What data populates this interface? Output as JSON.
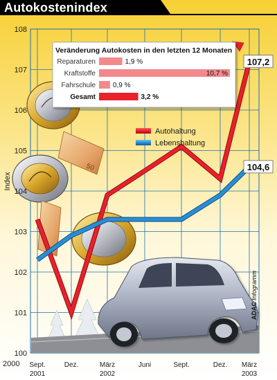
{
  "header": {
    "title": "Autokostenindex"
  },
  "chart_data": {
    "type": "line",
    "ylabel": "Index",
    "ylim": [
      100,
      108
    ],
    "yticks": [
      100,
      101,
      102,
      103,
      104,
      105,
      106,
      107,
      108
    ],
    "ytick_labels": [
      "100",
      "101",
      "102",
      "103",
      "104",
      "105",
      "106",
      "107",
      "108"
    ],
    "y_axis_extra_label": "2000",
    "xtick_labels": [
      [
        "Sept.",
        "2001"
      ],
      [
        "Dez.",
        ""
      ],
      [
        "März",
        "2002"
      ],
      [
        "Juni",
        ""
      ],
      [
        "Sept.",
        ""
      ],
      [
        "Dez.",
        ""
      ],
      [
        "März",
        "2003"
      ]
    ],
    "grid": true,
    "series": [
      {
        "name": "Autohaltung",
        "color": "#e8212b",
        "x": [
          0,
          1,
          2,
          3,
          4,
          5,
          6
        ],
        "values": [
          103.3,
          101.0,
          103.9,
          104.5,
          105.1,
          104.3,
          107.2
        ],
        "end_label": "107,2"
      },
      {
        "name": "Lebenshaltung",
        "color": "#2a8ed6",
        "x": [
          0,
          1,
          2,
          3,
          4,
          5,
          6
        ],
        "values": [
          102.3,
          102.9,
          103.3,
          103.3,
          103.3,
          103.9,
          104.6
        ],
        "end_label": "104,6"
      }
    ],
    "legend_position": "center-right",
    "inset": {
      "type": "bar",
      "title": "Veränderung Autokosten in den letzten 12 Monaten",
      "color": "#e8212b",
      "categories": [
        "Reparaturen",
        "Kraftstoffe",
        "Fahrschule",
        "Gesamt"
      ],
      "values": [
        1.9,
        10.7,
        0.9,
        3.2
      ],
      "value_labels": [
        "1,9 %",
        "10,7 %",
        "0,9 %",
        "3,2 %"
      ],
      "bold_last": true
    }
  },
  "credit": {
    "brand": "ADAC",
    "text": "Infogramm"
  },
  "colors": {
    "background_top": "#f7d033",
    "background_bottom": "#ffffff",
    "title_band": "#000000",
    "accent": "#f3b400"
  }
}
